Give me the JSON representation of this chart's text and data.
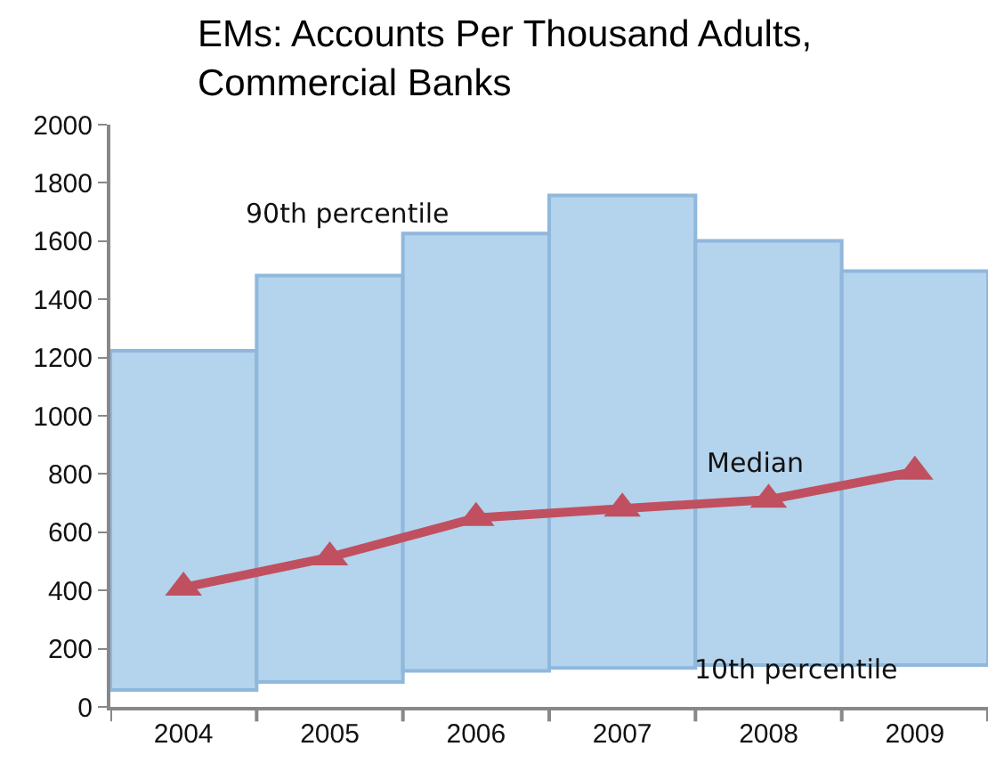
{
  "chart_data": {
    "type": "bar",
    "title": "EMs: Accounts Per Thousand Adults,\nCommercial Banks",
    "categories": [
      "2004",
      "2005",
      "2006",
      "2007",
      "2008",
      "2009"
    ],
    "series": [
      {
        "color": "#b4d3ec",
        "base": [
          58,
          86,
          124,
          134,
          144,
          144
        ],
        "values": [
          1165,
          1396,
          1502,
          1623,
          1457,
          1353
        ]
      },
      {
        "type": "line",
        "color": "#c0505f",
        "marker": "triangle",
        "line_style": "solid",
        "values": [
          410,
          514,
          649,
          681,
          712,
          808
        ]
      }
    ],
    "annotations": [
      "90th percentile",
      "Median",
      "10th percentile"
    ],
    "ylim": [
      0,
      2000
    ],
    "yticks": [
      0,
      200,
      400,
      600,
      800,
      1000,
      1200,
      1400,
      1600,
      1800,
      2000
    ]
  }
}
